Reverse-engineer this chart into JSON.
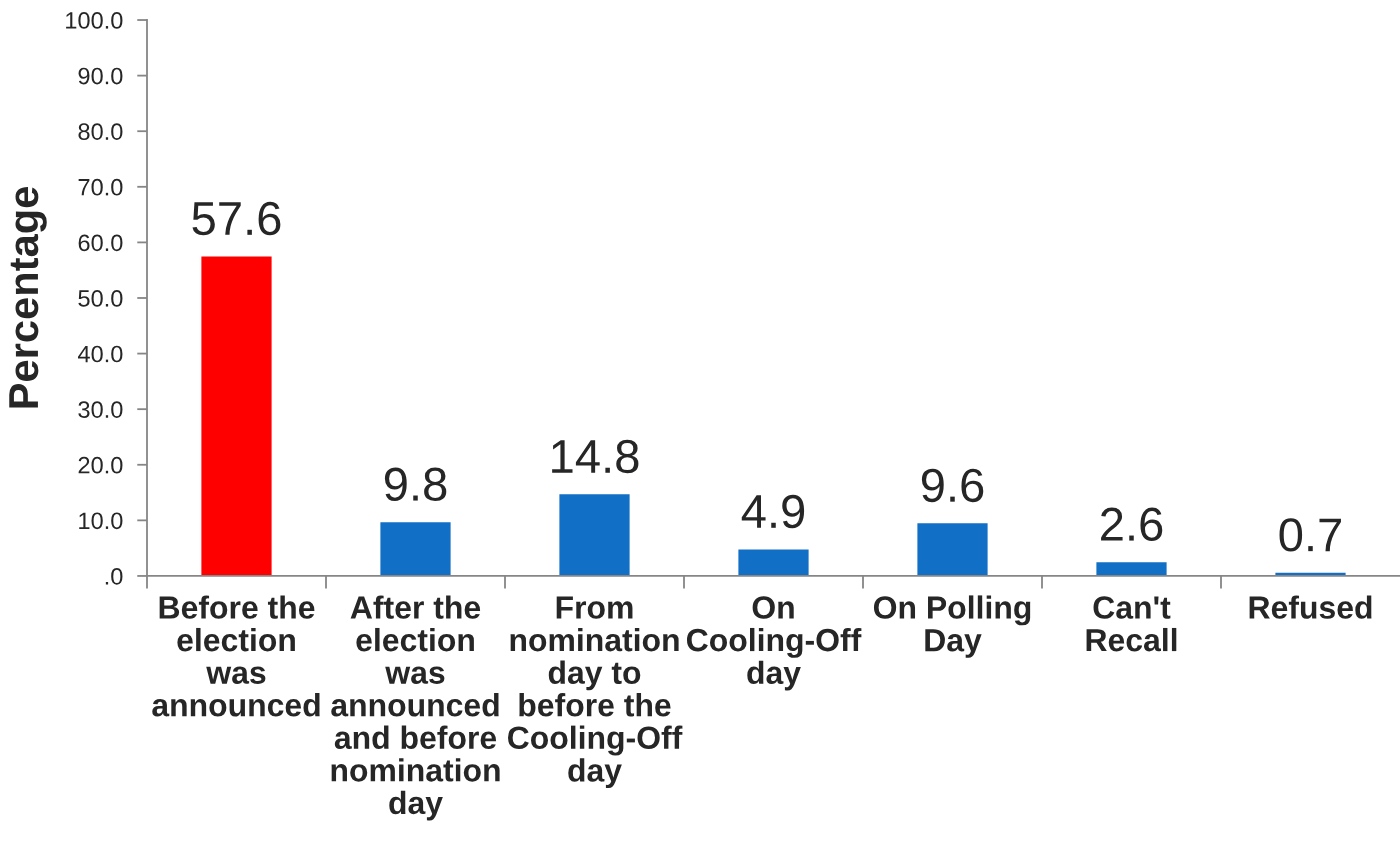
{
  "chart_data": {
    "type": "bar",
    "ylabel": "Percentage",
    "categories": [
      "Before the\nelection\nwas\nannounced",
      "After the\nelection\nwas\nannounced\nand before\nnomination\nday",
      "From\nnomination\nday to\nbefore the\nCooling-Off\nday",
      "On\nCooling-Off\nday",
      "On Polling\nDay",
      "Can't\nRecall",
      "Refused"
    ],
    "values": [
      57.6,
      9.8,
      14.8,
      4.9,
      9.6,
      2.6,
      0.7
    ],
    "colors": [
      "#ff0000",
      "#126fc6",
      "#126fc6",
      "#126fc6",
      "#126fc6",
      "#126fc6",
      "#126fc6"
    ],
    "ylim": [
      0,
      100
    ],
    "yticks": [
      {
        "value": 0,
        "label": ".0"
      },
      {
        "value": 10,
        "label": "10.0"
      },
      {
        "value": 20,
        "label": "20.0"
      },
      {
        "value": 30,
        "label": "30.0"
      },
      {
        "value": 40,
        "label": "40.0"
      },
      {
        "value": 50,
        "label": "50.0"
      },
      {
        "value": 60,
        "label": "60.0"
      },
      {
        "value": 70,
        "label": "70.0"
      },
      {
        "value": 80,
        "label": "80.0"
      },
      {
        "value": 90,
        "label": "90.0"
      },
      {
        "value": 100,
        "label": "100.0"
      }
    ],
    "data_labels": true
  }
}
